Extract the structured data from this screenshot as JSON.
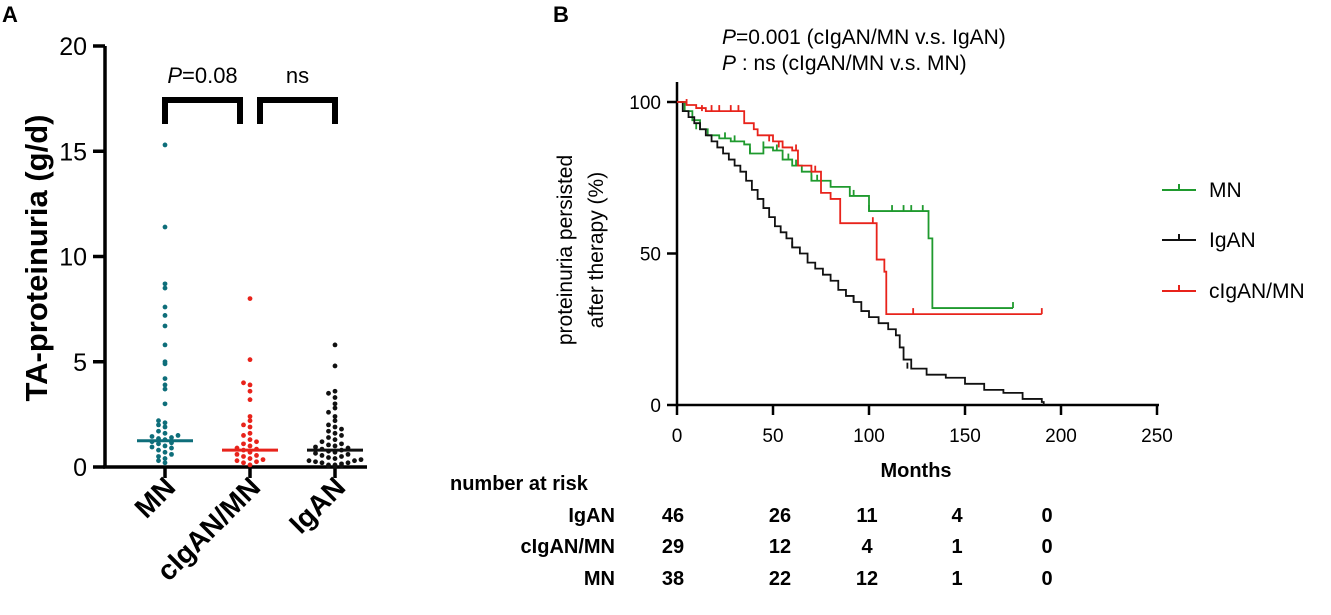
{
  "chart_data": [
    {
      "panel_label": "A",
      "type": "scatter",
      "ylabel": "TA-proteinuria (g/d)",
      "ylim": [
        0,
        20
      ],
      "yticks": [
        0,
        5,
        10,
        15,
        20
      ],
      "categories": [
        "MN",
        "cIgAN/MN",
        "IgAN"
      ],
      "colors": [
        "#0e6e7a",
        "#e8231b",
        "#111111"
      ],
      "medians": [
        1.25,
        0.8,
        0.8
      ],
      "points": [
        [
          15.3,
          11.4,
          8.7,
          8.5,
          7.6,
          7.2,
          6.7,
          5.8,
          5.0,
          4.9,
          4.2,
          3.9,
          3.7,
          3.0,
          2.2,
          2.1,
          2.0,
          1.9,
          1.7,
          1.6,
          1.5,
          1.45,
          1.4,
          1.35,
          1.3,
          1.2,
          1.15,
          1.1,
          1.0,
          0.95,
          0.9,
          0.8,
          0.7,
          0.6,
          0.5,
          0.4,
          0.3,
          0.2
        ],
        [
          8.0,
          5.1,
          4.0,
          3.9,
          3.6,
          3.2,
          2.4,
          2.2,
          2.0,
          1.9,
          1.6,
          1.5,
          1.3,
          1.2,
          1.1,
          1.0,
          0.9,
          0.85,
          0.8,
          0.7,
          0.6,
          0.55,
          0.5,
          0.4,
          0.35,
          0.3,
          0.25,
          0.2,
          0.1
        ],
        [
          5.8,
          4.8,
          3.6,
          3.5,
          3.3,
          3.0,
          2.8,
          2.6,
          2.4,
          2.2,
          2.0,
          1.9,
          1.8,
          1.7,
          1.6,
          1.5,
          1.4,
          1.3,
          1.2,
          1.1,
          1.05,
          1.0,
          0.95,
          0.9,
          0.85,
          0.8,
          0.75,
          0.7,
          0.65,
          0.6,
          0.55,
          0.5,
          0.45,
          0.4,
          0.35,
          0.3,
          0.3,
          0.25,
          0.2,
          0.2,
          0.15,
          0.1,
          0.1,
          0.05,
          0.05,
          0.02
        ]
      ],
      "comparisons": [
        {
          "groups": [
            0,
            1
          ],
          "label_italic": "P",
          "label_rest": "=0.08"
        },
        {
          "groups": [
            1,
            2
          ],
          "label_italic": "",
          "label_rest": "ns"
        }
      ]
    },
    {
      "panel_label": "B",
      "type": "line",
      "xlabel": "Months",
      "ylabel_line1": "proteinuria persisted",
      "ylabel_line2": "after therapy   (%)",
      "xlim": [
        0,
        250
      ],
      "ylim": [
        0,
        100
      ],
      "xticks": [
        0,
        50,
        100,
        150,
        200,
        250
      ],
      "yticks": [
        0,
        50,
        100
      ],
      "annotations": [
        {
          "italic": "P",
          "rest": "=0.001 (cIgAN/MN v.s. IgAN)"
        },
        {
          "italic": "P",
          "rest": " : ns (cIgAN/MN v.s. MN)"
        }
      ],
      "series": [
        {
          "name": "MN",
          "color": "#1f9a2e",
          "x": [
            0,
            4,
            8,
            12,
            16,
            22,
            28,
            35,
            38,
            45,
            50,
            55,
            60,
            65,
            70,
            80,
            90,
            100,
            125,
            131,
            133,
            175
          ],
          "y": [
            100,
            97,
            94,
            91,
            89,
            88,
            87,
            86,
            83,
            85,
            84,
            81,
            79,
            77,
            74,
            72,
            69,
            64,
            64,
            55,
            32,
            32
          ],
          "censor_x": [
            10,
            25,
            30,
            38,
            45,
            52,
            58,
            62,
            70,
            73,
            92,
            100,
            112,
            118,
            122,
            128,
            175
          ],
          "censor_y": [
            91,
            88,
            87,
            83,
            85,
            84,
            81,
            79,
            74,
            74,
            69,
            64,
            64,
            64,
            64,
            64,
            32
          ]
        },
        {
          "name": "IgAN",
          "color": "#111111",
          "x": [
            0,
            3,
            6,
            9,
            12,
            15,
            18,
            21,
            24,
            27,
            30,
            33,
            36,
            39,
            42,
            45,
            48,
            51,
            54,
            57,
            60,
            64,
            68,
            72,
            76,
            80,
            84,
            88,
            92,
            96,
            100,
            105,
            110,
            114,
            116,
            118,
            122,
            130,
            140,
            150,
            160,
            170,
            180,
            190,
            191
          ],
          "y": [
            100,
            97,
            95,
            93,
            91,
            89,
            87,
            85,
            83,
            81,
            79,
            77,
            74,
            71,
            68,
            65,
            62,
            59,
            57,
            55,
            52,
            50,
            47,
            45,
            43,
            41,
            38,
            36,
            34,
            31,
            29,
            27,
            25,
            23,
            19,
            15,
            12,
            10,
            9,
            7,
            5,
            4,
            2,
            1,
            0
          ],
          "censor_x": [
            60,
            92,
            120
          ],
          "censor_y": [
            52,
            34,
            12
          ]
        },
        {
          "name": "cIgAN/MN",
          "color": "#e8231b",
          "x": [
            0,
            5,
            10,
            15,
            30,
            35,
            40,
            42,
            50,
            55,
            60,
            63,
            70,
            75,
            80,
            85,
            100,
            104,
            108,
            109,
            190
          ],
          "y": [
            100,
            99,
            98,
            97,
            97,
            93,
            91,
            89,
            87,
            85,
            84,
            79,
            77,
            70,
            68,
            60,
            60,
            48,
            44,
            30,
            30
          ],
          "censor_x": [
            5,
            13,
            18,
            22,
            28,
            32,
            48,
            53,
            62,
            72,
            102,
            123,
            190
          ],
          "censor_y": [
            99,
            97,
            97,
            97,
            97,
            97,
            87,
            85,
            84,
            77,
            60,
            30,
            30
          ]
        }
      ],
      "risk_table": {
        "title": "number at risk",
        "time_points": [
          0,
          50,
          100,
          150,
          200
        ],
        "rows": [
          {
            "label": "IgAN",
            "values": [
              "46",
              "26",
              "11",
              "4",
              "0"
            ]
          },
          {
            "label": "cIgAN/MN",
            "values": [
              "29",
              "12",
              "4",
              "1",
              "0"
            ]
          },
          {
            "label": "MN",
            "values": [
              "38",
              "22",
              "12",
              "1",
              "0"
            ]
          }
        ]
      }
    }
  ]
}
